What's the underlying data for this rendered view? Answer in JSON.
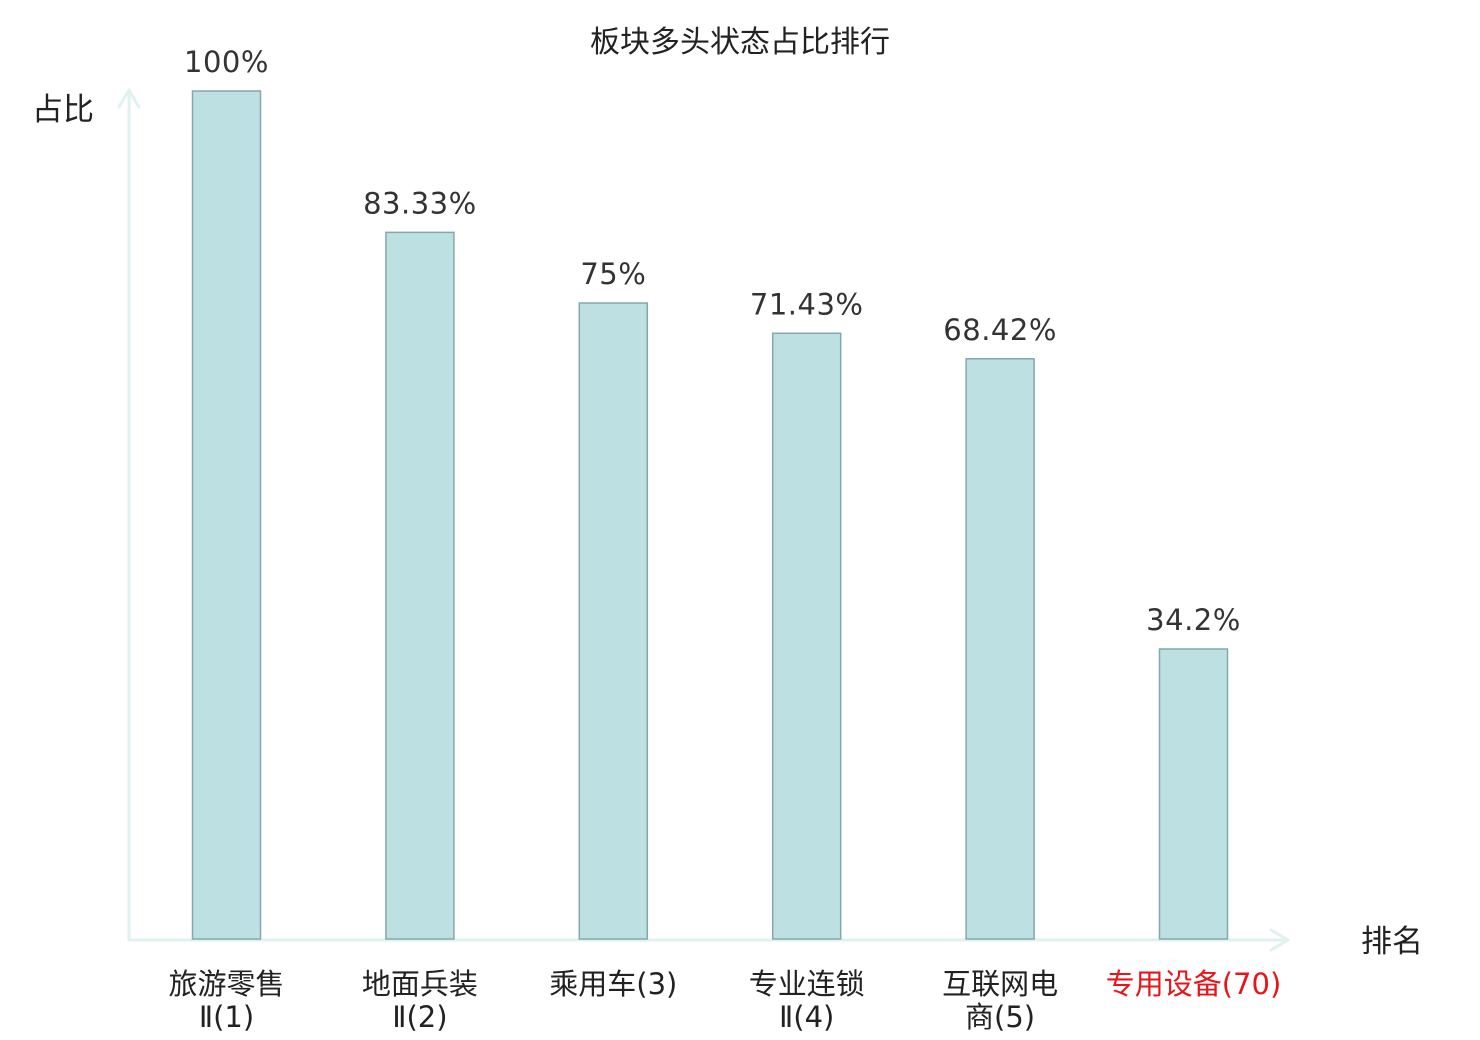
{
  "chart_data": {
    "type": "bar",
    "title": "板块多头状态占比排行",
    "xlabel": "排名",
    "ylabel": "占比",
    "ylim": [
      0,
      100
    ],
    "grid": false,
    "categories": [
      {
        "lines": [
          "旅游零售",
          "Ⅱ(1)"
        ],
        "highlight": false
      },
      {
        "lines": [
          "地面兵装",
          "Ⅱ(2)"
        ],
        "highlight": false
      },
      {
        "lines": [
          "乘用车(3)"
        ],
        "highlight": false
      },
      {
        "lines": [
          "专业连锁",
          "Ⅱ(4)"
        ],
        "highlight": false
      },
      {
        "lines": [
          "互联网电",
          "商(5)"
        ],
        "highlight": false
      },
      {
        "lines": [
          "专用设备(70)"
        ],
        "highlight": true
      }
    ],
    "values": [
      100,
      83.33,
      75,
      71.43,
      68.42,
      34.2
    ],
    "value_labels": [
      "100%",
      "83.33%",
      "75%",
      "71.43%",
      "68.42%",
      "34.2%"
    ],
    "colors": {
      "bar_fill": "#bde0e3",
      "bar_stroke": "#86a7ab",
      "axis": "#dff2ef",
      "highlight_text": "#e8141a"
    }
  }
}
